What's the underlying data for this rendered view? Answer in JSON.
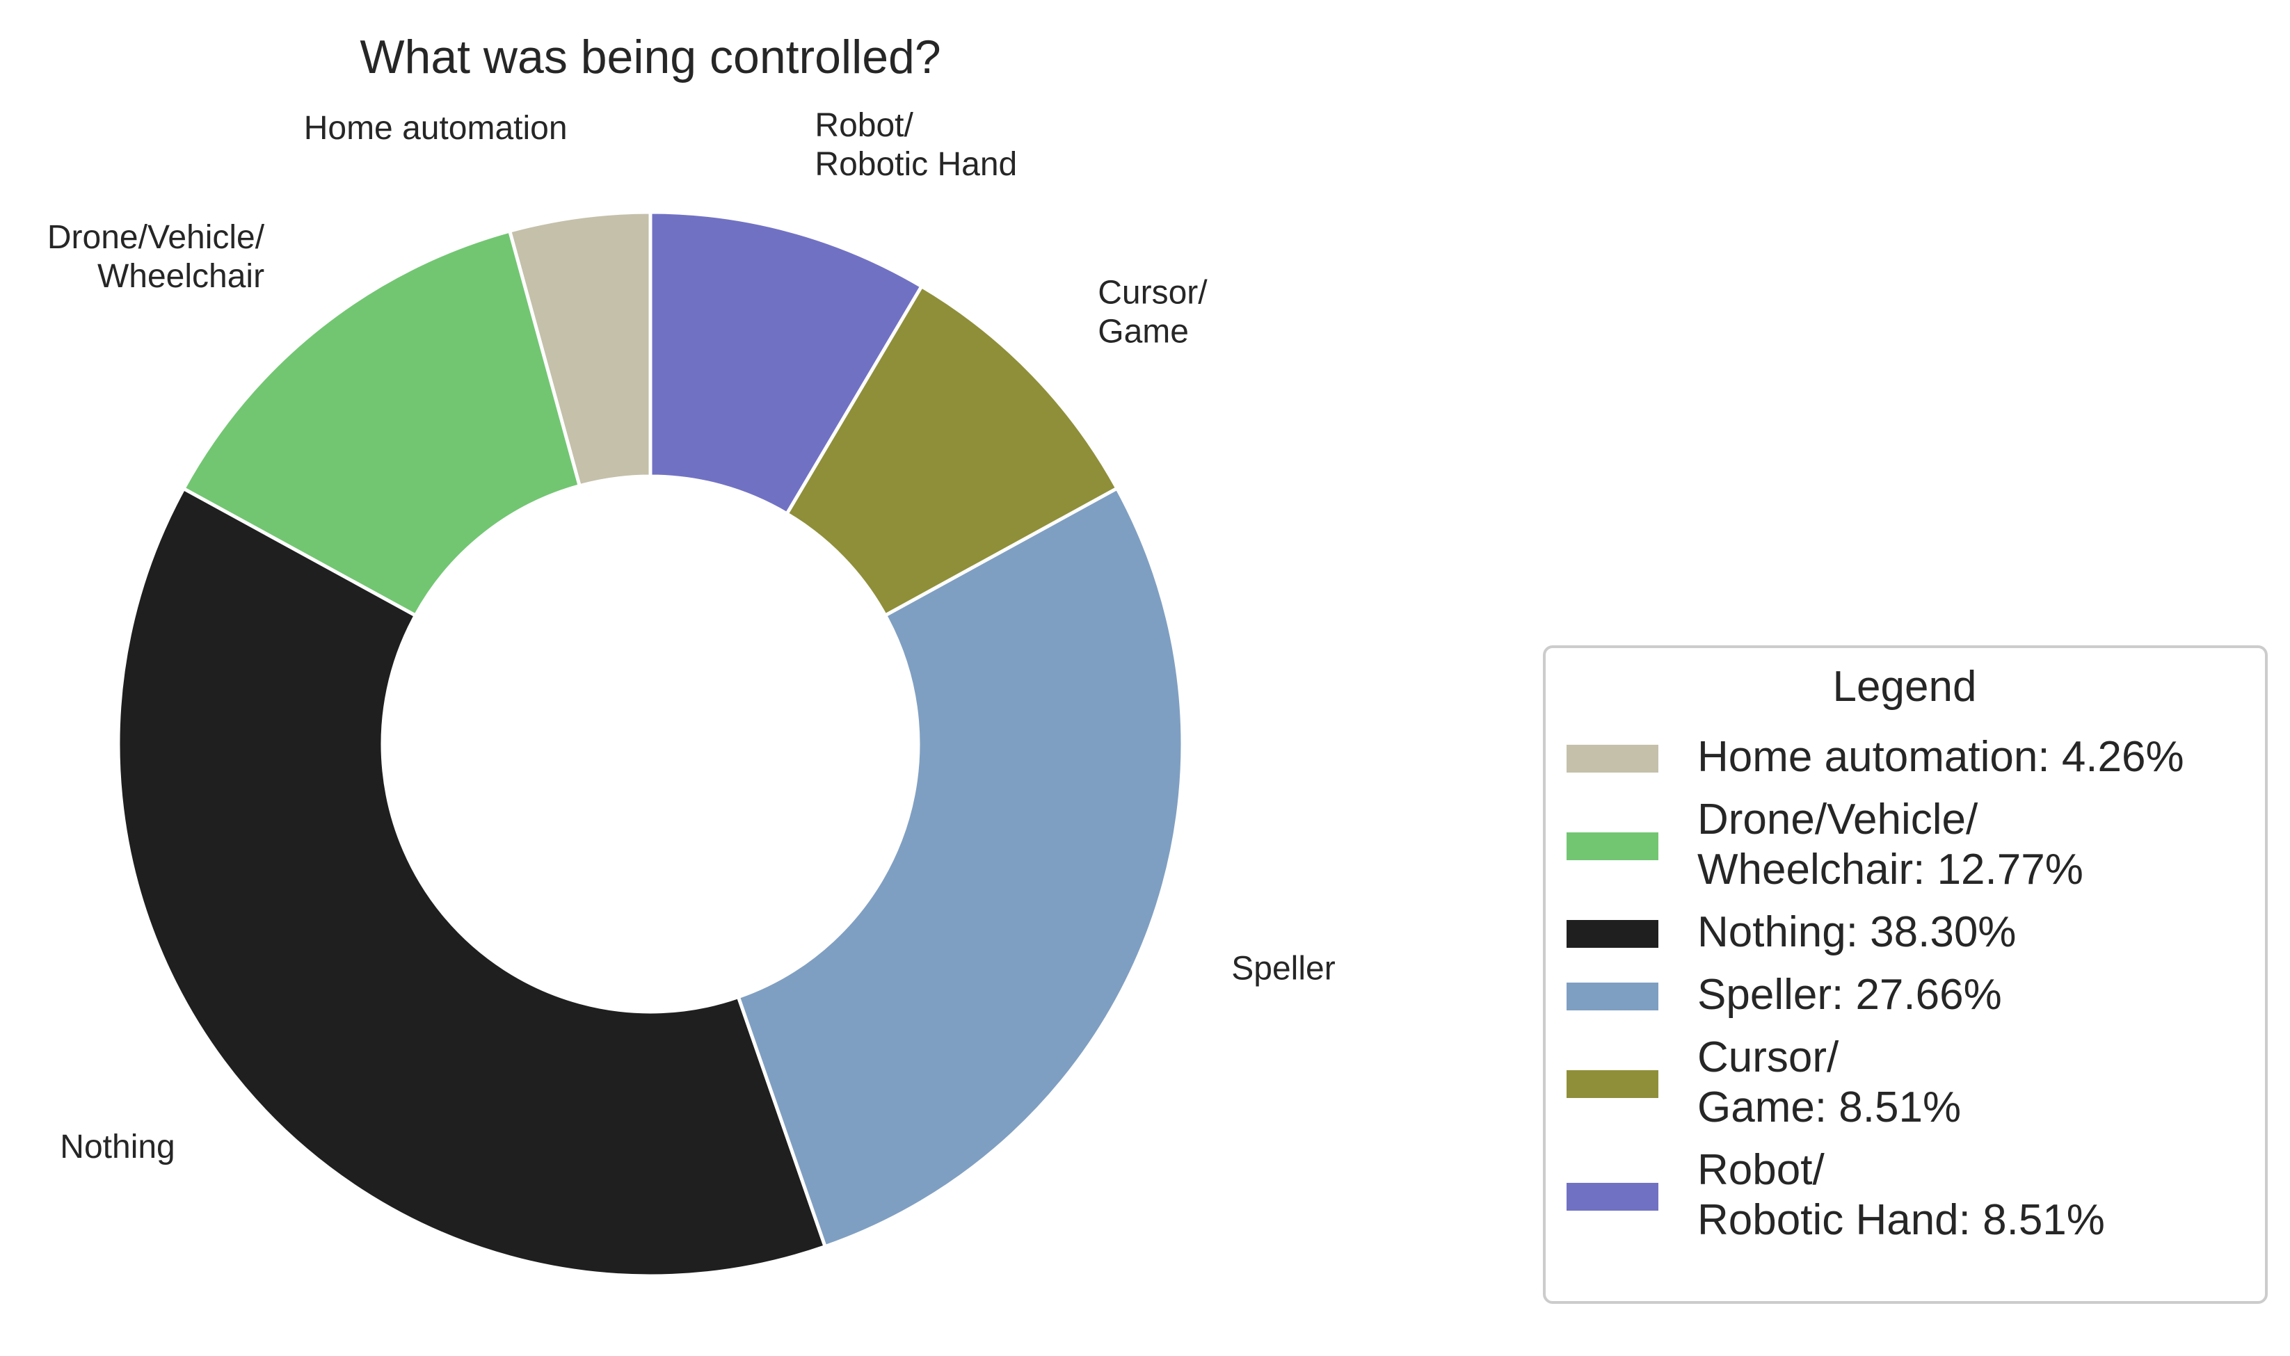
{
  "chart_data": {
    "type": "pie",
    "donut": true,
    "title": "What was being controlled?",
    "start_angle_deg": 90,
    "direction": "counterclockwise",
    "slices": [
      {
        "label": "Home automation",
        "value": 4.26,
        "color": "#c5c0aa",
        "legend_label": "Home automation: 4.26%"
      },
      {
        "label": "Drone/Vehicle/\nWheelchair",
        "value": 12.77,
        "color": "#72c672",
        "legend_label": "Drone/Vehicle/\nWheelchair: 12.77%"
      },
      {
        "label": "Nothing",
        "value": 38.3,
        "color": "#1f1f1f",
        "legend_label": "Nothing: 38.30%"
      },
      {
        "label": "Speller",
        "value": 27.66,
        "color": "#7f9fc2",
        "legend_label": "Speller: 27.66%"
      },
      {
        "label": "Cursor/\nGame",
        "value": 8.51,
        "color": "#8f8f3a",
        "legend_label": "Cursor/\nGame: 8.51%"
      },
      {
        "label": "Robot/\nRobotic Hand",
        "value": 8.51,
        "color": "#7171c4",
        "legend_label": "Robot/\nRobotic Hand: 8.51%"
      }
    ],
    "legend": {
      "title": "Legend",
      "placement": "center-right"
    }
  }
}
